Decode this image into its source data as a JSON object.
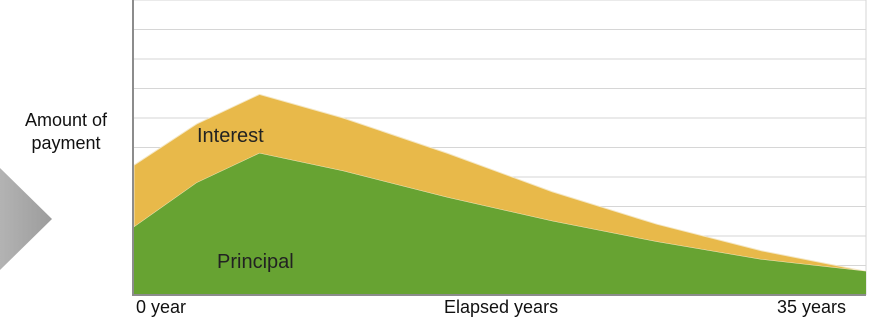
{
  "chart_data": {
    "type": "area",
    "stacked": true,
    "xlabel": "Elapsed  years",
    "ylabel": "Amount of payment",
    "x_tick_labels": [
      "0 year",
      "35 years"
    ],
    "xlim": [
      0,
      35
    ],
    "ylim": [
      0,
      10
    ],
    "grid": true,
    "x": [
      0,
      3,
      6,
      10,
      15,
      20,
      25,
      30,
      35
    ],
    "series": [
      {
        "name": "Principal",
        "color": "#67a332",
        "values": [
          2.3,
          3.8,
          4.8,
          4.2,
          3.3,
          2.5,
          1.8,
          1.2,
          0.8
        ]
      },
      {
        "name": "Interest",
        "color": "#e8b94a",
        "values": [
          2.1,
          2.0,
          2.0,
          1.8,
          1.5,
          1.0,
          0.6,
          0.3,
          0.0
        ]
      }
    ],
    "colors": {
      "grid": "#d6d6d6",
      "axis": "#8c8c8c",
      "arrow": "#a9a9a9"
    }
  }
}
